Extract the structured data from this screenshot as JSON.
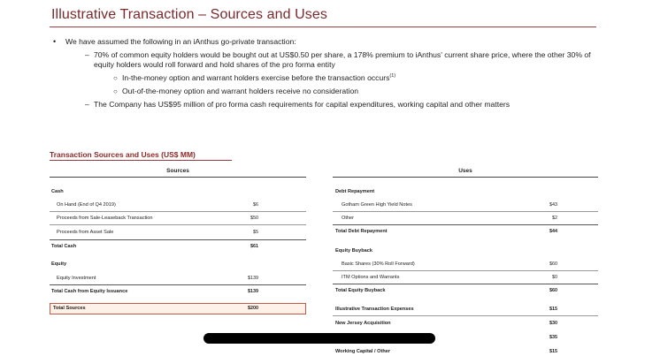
{
  "title": "Illustrative Transaction – Sources and Uses",
  "bullets": {
    "b1": "We have assumed the following in an iAnthus go-private transaction:",
    "b2a": "70% of common equity holders would be bought out at US$0.50 per share, a 178% premium to iAnthus' current share price, where the other 30% of equity holders would roll forward and hold shares of the pro forma entity",
    "b3a": "In-the-money option and warrant holders exercise before the transaction occurs",
    "b3a_sup": "(1)",
    "b3b": "Out-of-the-money option and warrant holders receive no consideration",
    "b2b": "The Company has US$95 million of pro forma cash requirements for capital expenditures, working capital and other matters"
  },
  "table_title": "Transaction Sources and Uses (US$ MM)",
  "sources": {
    "header": "Sources",
    "rows": [
      {
        "label": "Cash",
        "value": ""
      },
      {
        "label": "On Hand (End of Q4 2019)",
        "value": "$6"
      },
      {
        "label": "Proceeds from Sale-Leaseback Transaction",
        "value": "$50"
      },
      {
        "label": "Proceeds from Asset Sale",
        "value": "$5"
      },
      {
        "label": "Total Cash",
        "value": "$61"
      },
      {
        "label": "Equity",
        "value": ""
      },
      {
        "label": "Equity Investment",
        "value": "$139"
      },
      {
        "label": "Total Cash from Equity Issuance",
        "value": "$139"
      },
      {
        "label": "Total Sources",
        "value": "$200"
      }
    ]
  },
  "uses": {
    "header": "Uses",
    "rows": [
      {
        "label": "Debt Repayment",
        "value": ""
      },
      {
        "label": "Gotham Green High Yield Notes",
        "value": "$43"
      },
      {
        "label": "Other",
        "value": "$2"
      },
      {
        "label": "Total Debt Repayment",
        "value": "$44"
      },
      {
        "label": "Equity Buyback",
        "value": ""
      },
      {
        "label": "Basic Shares (30% Roll Forward)",
        "value": "$60"
      },
      {
        "label": "ITM Options and Warrants",
        "value": "$0"
      },
      {
        "label": "Total Equity Buyback",
        "value": "$60"
      },
      {
        "label": "Illustrative Transaction Expenses",
        "value": "$15"
      },
      {
        "label": "New Jersey Acquisition",
        "value": "$30"
      },
      {
        "label": "",
        "value": "$35"
      },
      {
        "label": "Working Capital / Other",
        "value": "$15"
      }
    ]
  },
  "colors": {
    "title": "#7a2a2e",
    "highlight_border": "#c05a4a",
    "redaction": "#000000"
  }
}
